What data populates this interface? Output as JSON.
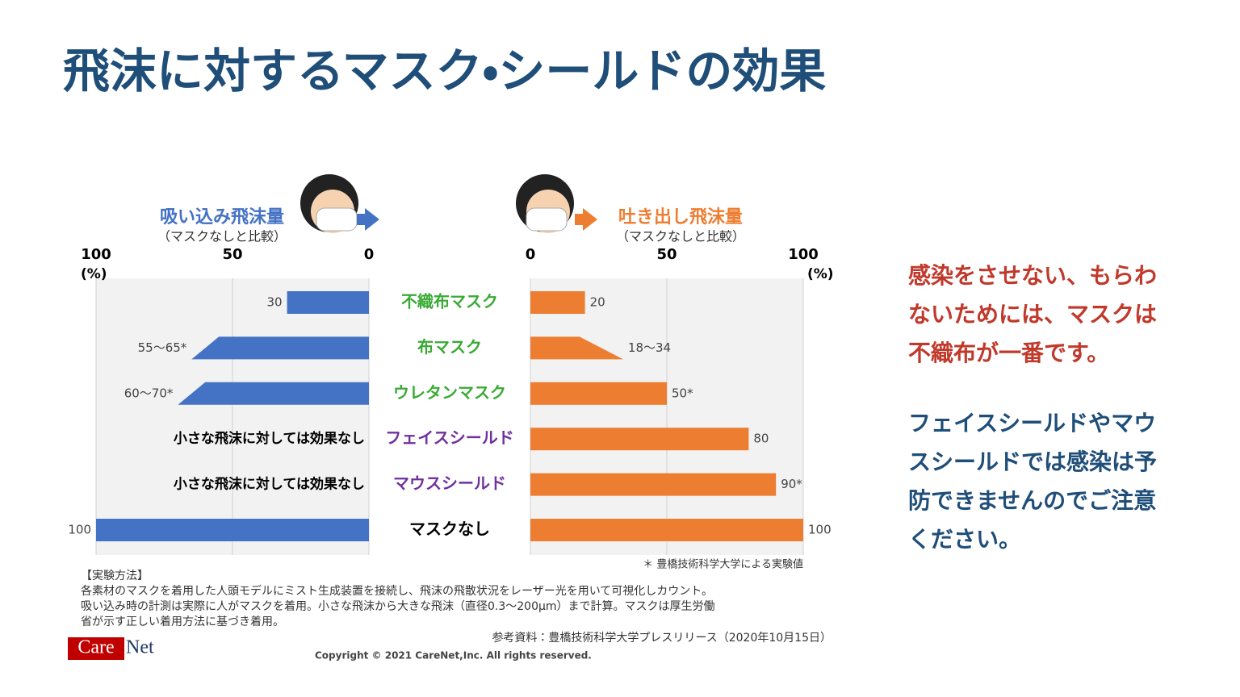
{
  "title": "飛沫に対するマスク・シールドの効果",
  "chart_data": {
    "type": "butterfly",
    "categories": [
      "不織布マスク",
      "布マスク",
      "ウレタンマスク",
      "フェイスシールド",
      "マウスシールド",
      "マスクなし"
    ],
    "category_colors": [
      "#3aaa35",
      "#3aaa35",
      "#3aaa35",
      "#7030a0",
      "#7030a0",
      "#000000"
    ],
    "xlim": [
      0,
      100
    ],
    "xticks": [
      0,
      50,
      100
    ],
    "unit": "(%)",
    "grid": true,
    "series": [
      {
        "name": "吸い込み飛沫量",
        "subtitle": "（マスクなしと比較）",
        "color": "#4472c4",
        "side": "left",
        "values": [
          30,
          55,
          60,
          null,
          null,
          100
        ],
        "values_high": [
          null,
          65,
          70,
          null,
          null,
          null
        ],
        "value_labels": [
          "30",
          "55〜65*",
          "60〜70*",
          "小さな飛沫に対しては効果なし",
          "小さな飛沫に対しては効果なし",
          "100"
        ]
      },
      {
        "name": "吐き出し飛沫量",
        "subtitle": "（マスクなしと比較）",
        "color": "#ed7d31",
        "side": "right",
        "values": [
          20,
          18,
          50,
          80,
          90,
          100
        ],
        "values_high": [
          null,
          34,
          null,
          null,
          null,
          null
        ],
        "value_labels": [
          "20",
          "18〜34",
          "50*",
          "80",
          "90*",
          "100"
        ]
      }
    ],
    "footnote": "＊ 豊橋技術科学大学による実験値"
  },
  "method": {
    "heading": "【実験方法】",
    "lines": [
      "各素材のマスクを着用した人頭モデルにミスト生成装置を接続し、飛沫の飛散状況をレーザー光を用いて可視化しカウント。",
      "吸い込み時の計測は実際に人がマスクを着用。小さな飛沫から大きな飛沫（直径0.3〜200µm）まで計算。マスクは厚生労働",
      "省が示す正しい着用方法に基づき着用。"
    ]
  },
  "reference": "参考資料：豊橋技術科学大学プレスリリース（2020年10月15日）",
  "copyright": "Copyright © 2021 CareNet,Inc. All rights reserved.",
  "logo": {
    "left": "Care",
    "right": "Net"
  },
  "message": {
    "red": [
      "感染をさせない、もらわ",
      "ないためには、マスクは",
      "不織布が一番です。"
    ],
    "blue": [
      "フェイスシールドやマウ",
      "スシールドでは感染は予",
      "防できませんのでご注意",
      "ください。"
    ]
  }
}
